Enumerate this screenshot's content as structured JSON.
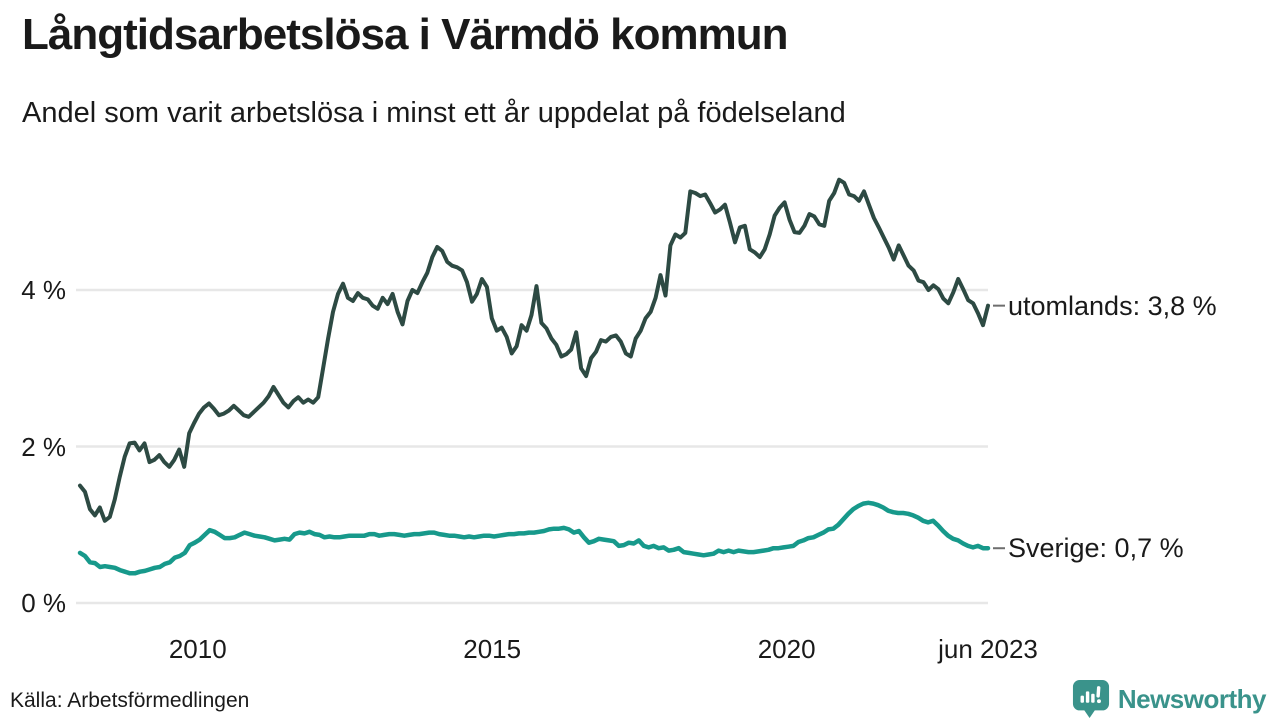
{
  "header": {
    "title": "Långtidsarbetslösa i Värmdö kommun",
    "subtitle": "Andel som varit arbetslösa i minst ett år uppdelat på födelseland"
  },
  "footer": {
    "source": "Källa: Arbetsförmedlingen",
    "brand": "Newsworthy"
  },
  "colors": {
    "utomlands_line": "#2d4a43",
    "sverige_line": "#17998b",
    "grid": "#e7e7e7",
    "text": "#1a1a1a",
    "tick_dash": "#6e6e6e",
    "brand_teal": "#3a938b"
  },
  "chart_data": {
    "type": "line",
    "title": "Långtidsarbetslösa i Värmdö kommun",
    "subtitle": "Andel som varit arbetslösa i minst ett år uppdelat på födelseland",
    "unit": "%",
    "grid": true,
    "legend_position": "right-end-labels",
    "x_axis": {
      "start_year": 2008.0,
      "end_year": 2023.42,
      "ticks": [
        {
          "label": "2010",
          "year": 2010.0
        },
        {
          "label": "2015",
          "year": 2015.0
        },
        {
          "label": "2020",
          "year": 2020.0
        },
        {
          "label": "jun 2023",
          "year": 2023.42
        }
      ]
    },
    "y_axis": {
      "ylim": [
        0,
        5.6
      ],
      "ticks": [
        {
          "label": "4 %",
          "value": 4
        },
        {
          "label": "2 %",
          "value": 2
        },
        {
          "label": "0 %",
          "value": 0
        }
      ]
    },
    "series": [
      {
        "name": "utomlands",
        "label": "utomlands: 3,8 %",
        "last_value": 3.8,
        "color_key": "utomlands_line",
        "stroke_width": 4,
        "values": [
          1.5,
          1.42,
          1.2,
          1.12,
          1.22,
          1.05,
          1.1,
          1.32,
          1.61,
          1.87,
          2.04,
          2.05,
          1.95,
          2.04,
          1.8,
          1.83,
          1.89,
          1.8,
          1.74,
          1.83,
          1.96,
          1.74,
          2.17,
          2.3,
          2.42,
          2.5,
          2.55,
          2.48,
          2.4,
          2.42,
          2.46,
          2.52,
          2.46,
          2.4,
          2.38,
          2.44,
          2.5,
          2.56,
          2.64,
          2.76,
          2.66,
          2.56,
          2.5,
          2.58,
          2.63,
          2.56,
          2.6,
          2.56,
          2.63,
          3.0,
          3.38,
          3.72,
          3.95,
          4.08,
          3.9,
          3.86,
          3.96,
          3.9,
          3.88,
          3.8,
          3.76,
          3.9,
          3.82,
          3.95,
          3.72,
          3.56,
          3.86,
          4.0,
          3.96,
          4.1,
          4.22,
          4.42,
          4.55,
          4.5,
          4.36,
          4.31,
          4.29,
          4.25,
          4.1,
          3.85,
          3.95,
          4.14,
          4.04,
          3.64,
          3.48,
          3.52,
          3.4,
          3.19,
          3.28,
          3.55,
          3.48,
          3.68,
          4.05,
          3.58,
          3.51,
          3.38,
          3.3,
          3.15,
          3.18,
          3.24,
          3.46,
          3.0,
          2.9,
          3.13,
          3.21,
          3.36,
          3.34,
          3.4,
          3.42,
          3.34,
          3.19,
          3.15,
          3.38,
          3.48,
          3.64,
          3.72,
          3.9,
          4.19,
          3.93,
          4.57,
          4.71,
          4.67,
          4.73,
          5.26,
          5.24,
          5.2,
          5.22,
          5.11,
          4.99,
          5.03,
          5.09,
          4.86,
          4.61,
          4.8,
          4.82,
          4.52,
          4.48,
          4.42,
          4.52,
          4.71,
          4.95,
          5.05,
          5.12,
          4.9,
          4.74,
          4.73,
          4.82,
          4.97,
          4.94,
          4.84,
          4.82,
          5.14,
          5.24,
          5.41,
          5.37,
          5.22,
          5.2,
          5.14,
          5.26,
          5.09,
          4.92,
          4.8,
          4.67,
          4.54,
          4.39,
          4.57,
          4.44,
          4.31,
          4.25,
          4.12,
          4.1,
          4.0,
          4.06,
          4.01,
          3.89,
          3.83,
          3.97,
          4.14,
          4.01,
          3.87,
          3.83,
          3.7,
          3.55,
          3.8
        ]
      },
      {
        "name": "Sverige",
        "label": "Sverige: 0,7 %",
        "last_value": 0.7,
        "color_key": "sverige_line",
        "stroke_width": 4.5,
        "values": [
          0.64,
          0.6,
          0.52,
          0.51,
          0.46,
          0.47,
          0.46,
          0.45,
          0.42,
          0.4,
          0.38,
          0.38,
          0.4,
          0.41,
          0.43,
          0.45,
          0.46,
          0.5,
          0.52,
          0.58,
          0.6,
          0.64,
          0.74,
          0.77,
          0.81,
          0.87,
          0.93,
          0.91,
          0.87,
          0.83,
          0.83,
          0.84,
          0.87,
          0.9,
          0.88,
          0.86,
          0.85,
          0.84,
          0.82,
          0.8,
          0.81,
          0.82,
          0.81,
          0.88,
          0.9,
          0.89,
          0.91,
          0.88,
          0.87,
          0.84,
          0.85,
          0.84,
          0.84,
          0.85,
          0.86,
          0.86,
          0.86,
          0.86,
          0.88,
          0.88,
          0.86,
          0.87,
          0.88,
          0.88,
          0.87,
          0.86,
          0.87,
          0.88,
          0.88,
          0.89,
          0.9,
          0.9,
          0.88,
          0.87,
          0.86,
          0.86,
          0.85,
          0.84,
          0.85,
          0.84,
          0.85,
          0.86,
          0.86,
          0.85,
          0.86,
          0.87,
          0.88,
          0.88,
          0.89,
          0.89,
          0.9,
          0.9,
          0.91,
          0.92,
          0.94,
          0.95,
          0.95,
          0.96,
          0.94,
          0.9,
          0.92,
          0.84,
          0.77,
          0.79,
          0.82,
          0.81,
          0.8,
          0.79,
          0.73,
          0.74,
          0.77,
          0.76,
          0.8,
          0.73,
          0.71,
          0.73,
          0.7,
          0.71,
          0.67,
          0.68,
          0.7,
          0.65,
          0.64,
          0.63,
          0.62,
          0.61,
          0.62,
          0.63,
          0.67,
          0.65,
          0.67,
          0.65,
          0.67,
          0.66,
          0.65,
          0.65,
          0.66,
          0.67,
          0.68,
          0.7,
          0.7,
          0.71,
          0.72,
          0.73,
          0.78,
          0.8,
          0.83,
          0.84,
          0.87,
          0.9,
          0.94,
          0.95,
          1.0,
          1.07,
          1.14,
          1.2,
          1.24,
          1.27,
          1.28,
          1.27,
          1.25,
          1.22,
          1.18,
          1.16,
          1.15,
          1.15,
          1.14,
          1.12,
          1.09,
          1.05,
          1.03,
          1.05,
          0.99,
          0.92,
          0.86,
          0.82,
          0.8,
          0.76,
          0.73,
          0.71,
          0.73,
          0.7,
          0.7
        ]
      }
    ]
  }
}
